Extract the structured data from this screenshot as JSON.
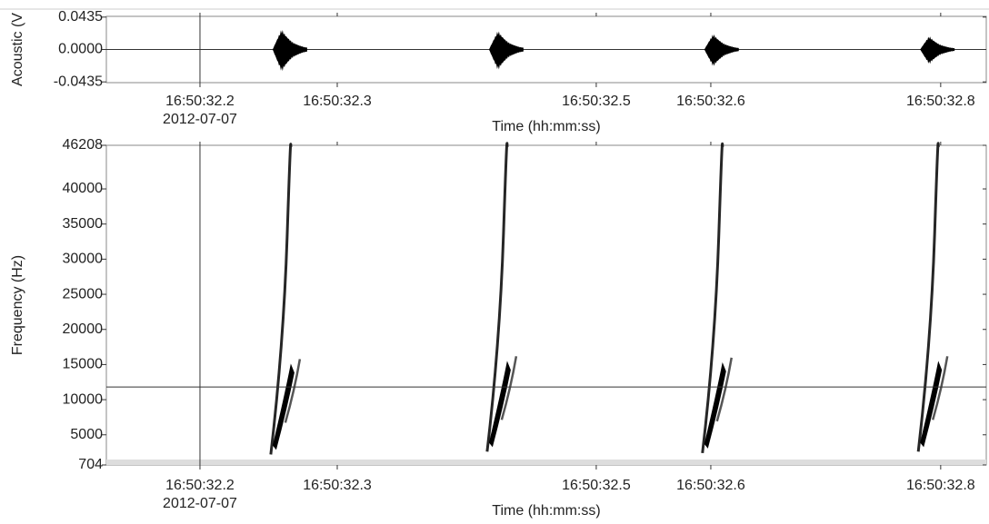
{
  "chart_data": [
    {
      "type": "waveform",
      "y_label": "Acoustic (V",
      "x_label": "Time (hh:mm:ss)",
      "date_label": "2012-07-07",
      "xlim": [
        32.1267,
        32.8157
      ],
      "xticks": [
        {
          "value": 32.2,
          "label": "16:50:32.2"
        },
        {
          "value": 32.3075,
          "label": "16:50:32.3"
        },
        {
          "value": 32.5103,
          "label": "16:50:32.5"
        },
        {
          "value": 32.6,
          "label": "16:50:32.6"
        },
        {
          "value": 32.78,
          "label": "16:50:32.8"
        }
      ],
      "ylim": [
        -0.0445,
        0.0445
      ],
      "yticks": [
        -0.0435,
        {
          "value": 0,
          "label": "0.0000"
        },
        0.0435
      ],
      "x": [
        32.264,
        32.4334,
        32.602,
        32.771
      ],
      "values": [
        0.0286,
        0.0265,
        0.022,
        0.019
      ],
      "color": "#000000",
      "cursor_x": 32.2
    },
    {
      "type": "spectrogram",
      "y_label": "Frequency (Hz)",
      "x_label": "Time (hh:mm:ss)",
      "date_label": "2012-07-07",
      "xlim": [
        32.1267,
        32.8157
      ],
      "xticks": [
        {
          "value": 32.2,
          "label": "16:50:32.2"
        },
        {
          "value": 32.3075,
          "label": "16:50:32.3"
        },
        {
          "value": 32.5103,
          "label": "16:50:32.5"
        },
        {
          "value": 32.6,
          "label": "16:50:32.6"
        },
        {
          "value": 32.78,
          "label": "16:50:32.8"
        }
      ],
      "ylim": [
        704,
        46208
      ],
      "yticks": [
        704,
        5000,
        10000,
        15000,
        20000,
        25000,
        30000,
        35000,
        40000,
        46208
      ],
      "x": [
        32.264,
        32.4334,
        32.602,
        32.771
      ],
      "values": [
        2200,
        2600,
        2400,
        2600
      ],
      "color": "#000000",
      "cursor_x": 32.2,
      "cursor_y": 11800
    }
  ]
}
